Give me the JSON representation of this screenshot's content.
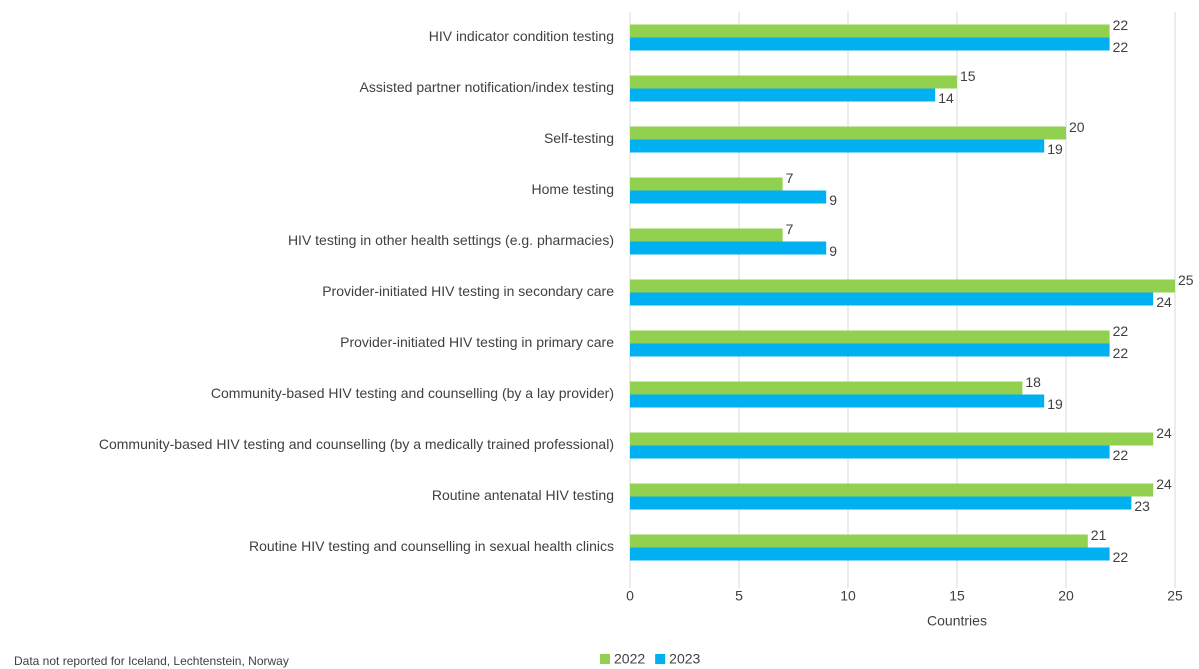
{
  "chart_data": {
    "type": "bar",
    "orientation": "horizontal",
    "categories": [
      "HIV indicator condition testing",
      "Assisted partner notification/index testing",
      "Self-testing",
      "Home testing",
      "HIV testing in other health settings (e.g. pharmacies)",
      "Provider-initiated HIV testing in secondary care",
      "Provider-initiated HIV testing in primary care",
      "Community-based HIV testing and counselling (by a lay provider)",
      "Community-based HIV testing and counselling (by a medically trained professional)",
      "Routine antenatal HIV testing",
      "Routine HIV testing and counselling in sexual health clinics"
    ],
    "series": [
      {
        "name": "2022",
        "color": "#92d050",
        "values": [
          22,
          15,
          20,
          7,
          7,
          25,
          22,
          18,
          24,
          24,
          21
        ]
      },
      {
        "name": "2023",
        "color": "#00b0f0",
        "values": [
          22,
          14,
          19,
          9,
          9,
          24,
          22,
          19,
          22,
          23,
          22
        ]
      }
    ],
    "xlabel": "Countries",
    "xlim": [
      0,
      25
    ],
    "xticks": [
      0,
      5,
      10,
      15,
      20,
      25
    ],
    "grid": true,
    "legend": "bottom",
    "note": "Data not reported for Iceland, Lechtenstein, Norway"
  }
}
